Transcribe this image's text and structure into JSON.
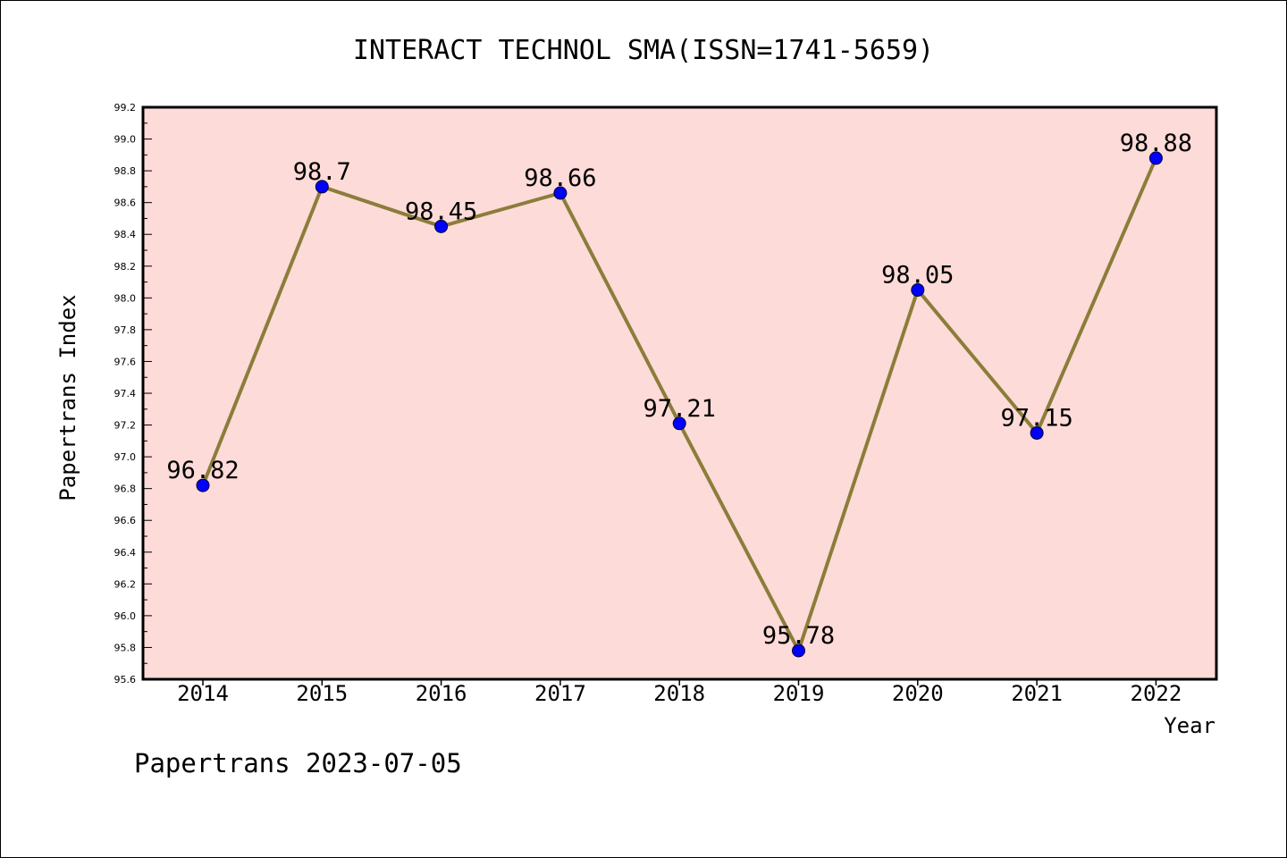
{
  "chart_data": {
    "type": "line",
    "title": "INTERACT TECHNOL SMA(ISSN=1741-5659)",
    "xlabel": "Year",
    "ylabel": "Papertrans Index",
    "categories": [
      "2014",
      "2015",
      "2016",
      "2017",
      "2018",
      "2019",
      "2020",
      "2021",
      "2022"
    ],
    "values": [
      96.82,
      98.7,
      98.45,
      98.66,
      97.21,
      95.78,
      98.05,
      97.15,
      98.88
    ],
    "data_labels": [
      "96.82",
      "98.7",
      "98.45",
      "98.66",
      "97.21",
      "95.78",
      "98.05",
      "97.15",
      "98.88"
    ],
    "ylim": [
      95.6,
      99.2
    ],
    "yticks": [
      "95.6",
      "95.8",
      "96.0",
      "96.2",
      "96.4",
      "96.6",
      "96.8",
      "97.0",
      "97.2",
      "97.4",
      "97.6",
      "97.8",
      "98.0",
      "98.2",
      "98.4",
      "98.6",
      "98.8",
      "99.0",
      "99.2"
    ],
    "grid": false,
    "colors": {
      "plot_background": "#fddbd8",
      "line": "#8b7d3a",
      "marker": "#0000ff"
    }
  },
  "footer": "Papertrans 2023-07-05"
}
